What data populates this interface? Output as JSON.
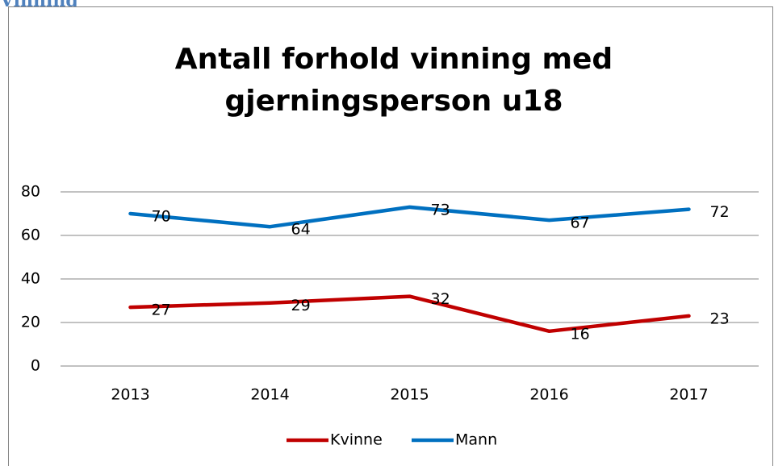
{
  "heading": "Vinning",
  "chart_data": {
    "type": "line",
    "title": [
      "Antall forhold vinning med",
      "gjerningsperson u18"
    ],
    "categories": [
      "2013",
      "2014",
      "2015",
      "2016",
      "2017"
    ],
    "series": [
      {
        "name": "Kvinne",
        "color": "#c00000",
        "values": [
          27,
          29,
          32,
          16,
          23
        ]
      },
      {
        "name": "Mann",
        "color": "#0070c0",
        "values": [
          70,
          64,
          73,
          67,
          72
        ]
      }
    ],
    "ylim": [
      0,
      80
    ],
    "yticks": [
      0,
      20,
      40,
      60,
      80
    ],
    "grid": true,
    "legend": "bottom"
  }
}
